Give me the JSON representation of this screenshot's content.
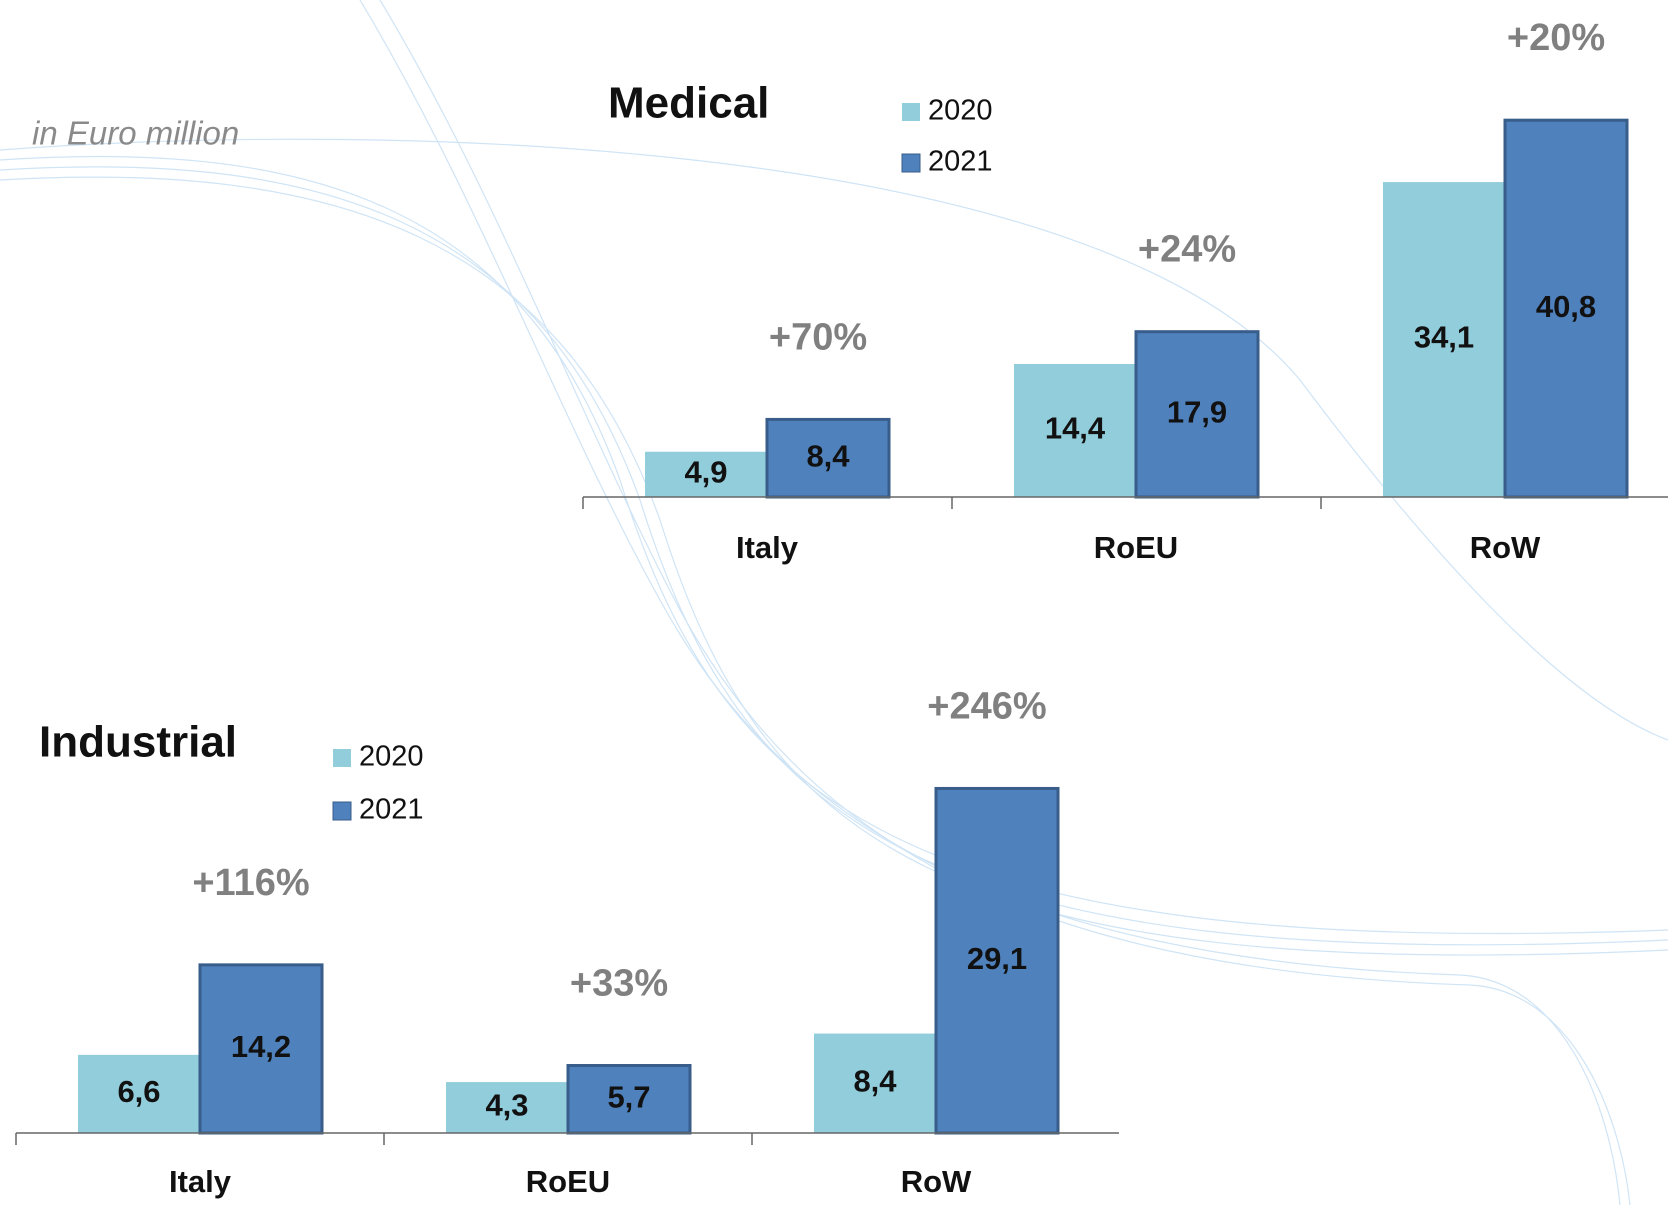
{
  "note": "in Euro million",
  "chart_data": [
    {
      "type": "bar",
      "title": "Medical",
      "categories": [
        "Italy",
        "RoEU",
        "RoW"
      ],
      "series": [
        {
          "name": "2020",
          "color": "#92cddc",
          "values": [
            4.9,
            14.4,
            34.1
          ],
          "value_labels": [
            "4,9",
            "14,4",
            "34,1"
          ]
        },
        {
          "name": "2021",
          "color": "#4f81bd",
          "values": [
            8.4,
            17.9,
            40.8
          ],
          "value_labels": [
            "8,4",
            "17,9",
            "40,8"
          ]
        }
      ],
      "annotations": [
        "+70%",
        "+24%",
        "+20%"
      ],
      "ylim": [
        0,
        45
      ]
    },
    {
      "type": "bar",
      "title": "Industrial",
      "categories": [
        "Italy",
        "RoEU",
        "RoW"
      ],
      "series": [
        {
          "name": "2020",
          "color": "#92cddc",
          "values": [
            6.6,
            4.3,
            8.4
          ],
          "value_labels": [
            "6,6",
            "4,3",
            "8,4"
          ]
        },
        {
          "name": "2021",
          "color": "#4f81bd",
          "values": [
            14.2,
            5.7,
            29.1
          ],
          "value_labels": [
            "14,2",
            "5,7",
            "29,1"
          ]
        }
      ],
      "annotations": [
        "+116%",
        "+33%",
        "+246%"
      ],
      "ylim": [
        0,
        30
      ]
    }
  ]
}
